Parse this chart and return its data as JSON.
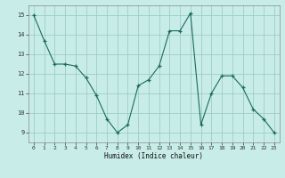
{
  "x": [
    0,
    1,
    2,
    3,
    4,
    5,
    6,
    7,
    8,
    9,
    10,
    11,
    12,
    13,
    14,
    15,
    16,
    17,
    18,
    19,
    20,
    21,
    22,
    23
  ],
  "y": [
    15.0,
    13.7,
    12.5,
    12.5,
    12.4,
    11.8,
    10.9,
    9.7,
    9.0,
    9.4,
    11.4,
    11.7,
    12.4,
    14.2,
    14.2,
    15.1,
    9.4,
    11.0,
    11.9,
    11.9,
    11.3,
    10.2,
    9.7,
    9.0
  ],
  "line_color": "#1a6b5a",
  "marker_color": "#1a6b5a",
  "bg_color": "#c8ede8",
  "grid_major_color": "#a0ccc6",
  "xlabel": "Humidex (Indice chaleur)",
  "ylim": [
    8.5,
    15.5
  ],
  "xlim": [
    -0.5,
    23.5
  ],
  "yticks": [
    9,
    10,
    11,
    12,
    13,
    14,
    15
  ],
  "xticks": [
    0,
    1,
    2,
    3,
    4,
    5,
    6,
    7,
    8,
    9,
    10,
    11,
    12,
    13,
    14,
    15,
    16,
    17,
    18,
    19,
    20,
    21,
    22,
    23
  ]
}
